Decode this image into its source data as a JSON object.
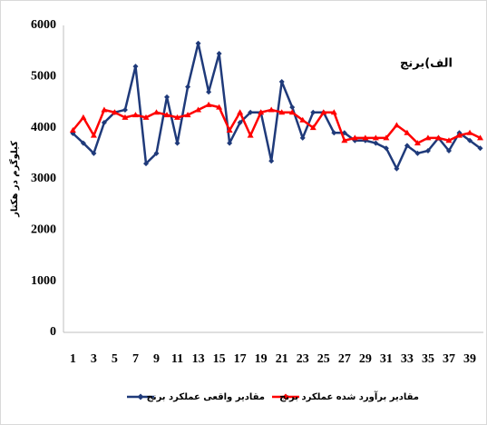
{
  "chart_data": {
    "type": "line",
    "title": "الف)برنج",
    "y_label": "کیلوگرم در هکتار",
    "x": [
      1,
      2,
      3,
      4,
      5,
      6,
      7,
      8,
      9,
      10,
      11,
      12,
      13,
      14,
      15,
      16,
      17,
      18,
      19,
      20,
      21,
      22,
      23,
      24,
      25,
      26,
      27,
      28,
      29,
      30,
      31,
      32,
      33,
      34,
      35,
      36,
      37,
      38,
      39,
      40
    ],
    "xlim": [
      0.1,
      40.3
    ],
    "xticks": [
      1,
      3,
      5,
      7,
      9,
      11,
      13,
      15,
      17,
      19,
      21,
      23,
      25,
      27,
      29,
      31,
      33,
      35,
      37,
      39
    ],
    "ylim": [
      0,
      6000
    ],
    "yticks": [
      0,
      1000,
      2000,
      3000,
      4000,
      5000,
      6000
    ],
    "grid": false,
    "series": [
      {
        "name": "مقادیر واقعی عملکرد برنج",
        "color": "#1f3a7a",
        "values": [
          3890,
          3700,
          3500,
          4100,
          4300,
          4350,
          5200,
          3300,
          3500,
          4600,
          3700,
          4800,
          5650,
          4700,
          5450,
          3700,
          4100,
          4300,
          4300,
          3350,
          4900,
          4400,
          3800,
          4300,
          4300,
          3900,
          3900,
          3750,
          3750,
          3700,
          3600,
          3200,
          3650,
          3500,
          3550,
          3800,
          3550,
          3900,
          3750,
          3600
        ]
      },
      {
        "name": "مقادیر برآورد شده عملکرد برنج",
        "color": "#ff0000",
        "values": [
          3950,
          4200,
          3850,
          4350,
          4300,
          4200,
          4250,
          4200,
          4300,
          4250,
          4200,
          4250,
          4350,
          4450,
          4400,
          3950,
          4300,
          3850,
          4300,
          4350,
          4300,
          4300,
          4150,
          4000,
          4300,
          4300,
          3750,
          3800,
          3800,
          3800,
          3800,
          4050,
          3900,
          3700,
          3800,
          3800,
          3750,
          3850,
          3900,
          3800
        ]
      }
    ]
  }
}
